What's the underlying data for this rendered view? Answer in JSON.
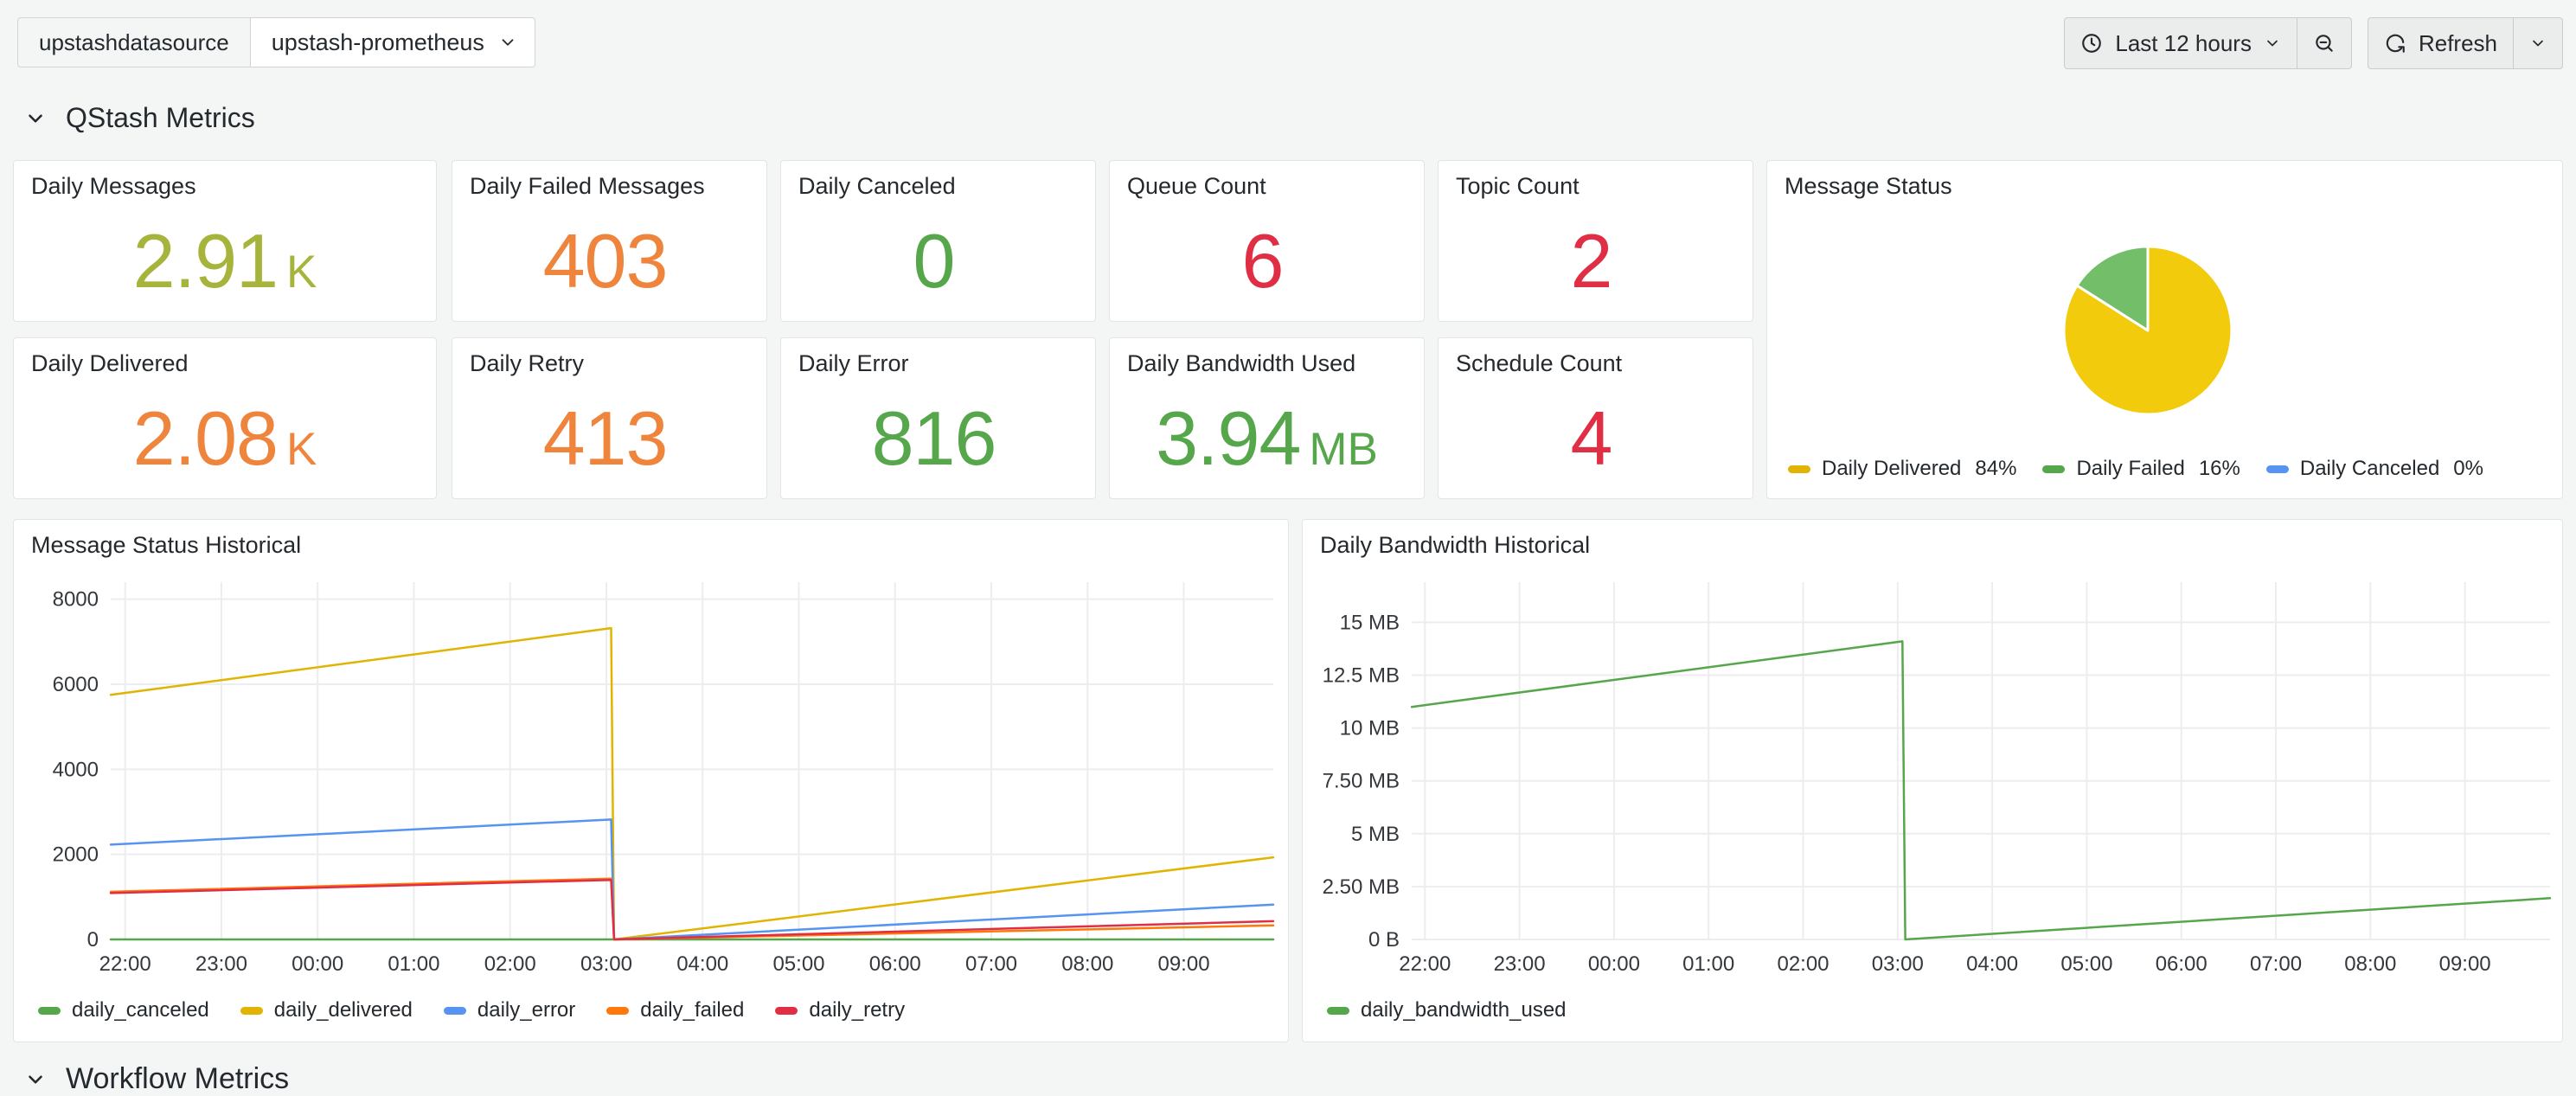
{
  "topbar": {
    "datasource_label": "upstashdatasource",
    "datasource_value": "upstash-prometheus",
    "datasource_icon": "chevron-down-icon",
    "time_range": "Last 12 hours",
    "time_icon": "clock-icon",
    "zoom_out_icon": "magnifier-minus-icon",
    "refresh_label": "Refresh",
    "refresh_icon": "refresh-icon",
    "refresh_more_icon": "chevron-down-icon"
  },
  "sections": {
    "qstash_title": "QStash Metrics",
    "workflow_title": "Workflow Metrics",
    "collapse_icon": "chevron-down-icon"
  },
  "stats": [
    {
      "title": "Daily Messages",
      "value": "2.91",
      "suffix": "K",
      "color": "#A6B43B"
    },
    {
      "title": "Daily Failed Messages",
      "value": "403",
      "suffix": "",
      "color": "#EF843C"
    },
    {
      "title": "Daily Canceled",
      "value": "0",
      "suffix": "",
      "color": "#56A64B"
    },
    {
      "title": "Queue Count",
      "value": "6",
      "suffix": "",
      "color": "#E02F44"
    },
    {
      "title": "Topic Count",
      "value": "2",
      "suffix": "",
      "color": "#E02F44"
    },
    {
      "title": "Daily Delivered",
      "value": "2.08",
      "suffix": "K",
      "color": "#EF843C"
    },
    {
      "title": "Daily Retry",
      "value": "413",
      "suffix": "",
      "color": "#EF843C"
    },
    {
      "title": "Daily Error",
      "value": "816",
      "suffix": "",
      "color": "#56A64B"
    },
    {
      "title": "Daily Bandwidth Used",
      "value": "3.94",
      "suffix": "MB",
      "color": "#56A64B"
    },
    {
      "title": "Schedule Count",
      "value": "4",
      "suffix": "",
      "color": "#E02F44"
    }
  ],
  "chart_data": [
    {
      "type": "pie",
      "title": "Message Status",
      "legend_position": "bottom",
      "slices": [
        {
          "label": "Daily Delivered",
          "percent": 84,
          "color": "#F2CC0C",
          "legend_color": "#E0B400"
        },
        {
          "label": "Daily Failed",
          "percent": 16,
          "color": "#73BF69",
          "legend_color": "#56A64B"
        },
        {
          "label": "Daily Canceled",
          "percent": 0,
          "color": "#5794F2",
          "legend_color": "#5794F2"
        }
      ]
    },
    {
      "type": "line",
      "title": "Message Status Historical",
      "xlabel": "time",
      "x_ticks": [
        "22:00",
        "23:00",
        "00:00",
        "01:00",
        "02:00",
        "03:00",
        "04:00",
        "05:00",
        "06:00",
        "07:00",
        "08:00",
        "09:00"
      ],
      "x_tick_hours": [
        22,
        23,
        24,
        25,
        26,
        27,
        28,
        29,
        30,
        31,
        32,
        33
      ],
      "xlim": [
        21.85,
        33.93
      ],
      "ylim": [
        0,
        8400
      ],
      "grid": true,
      "legend_position": "bottom",
      "y_ticks": [
        {
          "v": 0,
          "label": "0"
        },
        {
          "v": 2000,
          "label": "2000"
        },
        {
          "v": 4000,
          "label": "4000"
        },
        {
          "v": 6000,
          "label": "6000"
        },
        {
          "v": 8000,
          "label": "8000"
        }
      ],
      "series": [
        {
          "name": "daily_canceled",
          "color": "#56A64B",
          "points": [
            [
              21.85,
              0
            ],
            [
              33.93,
              0
            ]
          ]
        },
        {
          "name": "daily_delivered",
          "color": "#E0B400",
          "points": [
            [
              21.85,
              5750
            ],
            [
              27.05,
              7320
            ],
            [
              27.08,
              0
            ],
            [
              33.93,
              1930
            ]
          ]
        },
        {
          "name": "daily_error",
          "color": "#5794F2",
          "points": [
            [
              21.85,
              2230
            ],
            [
              27.05,
              2820
            ],
            [
              27.08,
              0
            ],
            [
              33.93,
              820
            ]
          ]
        },
        {
          "name": "daily_failed",
          "color": "#FF780A",
          "points": [
            [
              21.85,
              1120
            ],
            [
              27.05,
              1430
            ],
            [
              27.08,
              0
            ],
            [
              33.93,
              330
            ]
          ]
        },
        {
          "name": "daily_retry",
          "color": "#E02F44",
          "points": [
            [
              21.85,
              1090
            ],
            [
              27.05,
              1400
            ],
            [
              27.08,
              0
            ],
            [
              33.93,
              430
            ]
          ]
        }
      ]
    },
    {
      "type": "line",
      "title": "Daily Bandwidth Historical",
      "xlabel": "time",
      "unit": "MB",
      "x_ticks": [
        "22:00",
        "23:00",
        "00:00",
        "01:00",
        "02:00",
        "03:00",
        "04:00",
        "05:00",
        "06:00",
        "07:00",
        "08:00",
        "09:00"
      ],
      "x_tick_hours": [
        22,
        23,
        24,
        25,
        26,
        27,
        28,
        29,
        30,
        31,
        32,
        33
      ],
      "xlim": [
        21.86,
        33.9
      ],
      "ylim": [
        0,
        16.9
      ],
      "grid": true,
      "legend_position": "bottom",
      "y_ticks": [
        {
          "v": 0,
          "label": "0 B"
        },
        {
          "v": 2.5,
          "label": "2.50 MB"
        },
        {
          "v": 5,
          "label": "5 MB"
        },
        {
          "v": 7.5,
          "label": "7.50 MB"
        },
        {
          "v": 10,
          "label": "10 MB"
        },
        {
          "v": 12.5,
          "label": "12.5 MB"
        },
        {
          "v": 15,
          "label": "15 MB"
        }
      ],
      "series": [
        {
          "name": "daily_bandwidth_used",
          "color": "#56A64B",
          "points": [
            [
              21.86,
              11.0
            ],
            [
              27.05,
              14.1
            ],
            [
              27.08,
              0
            ],
            [
              33.9,
              1.95
            ]
          ]
        }
      ]
    }
  ]
}
